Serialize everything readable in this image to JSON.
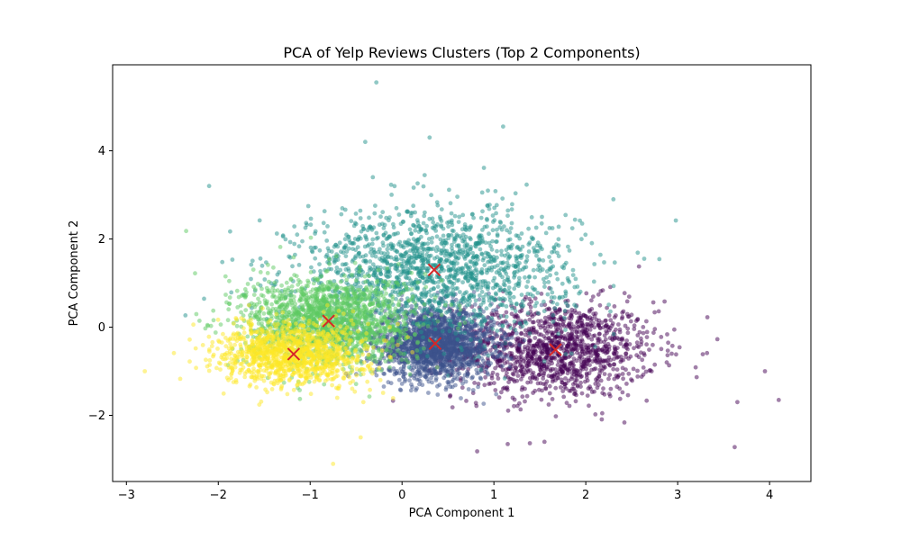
{
  "chart_data": {
    "type": "scatter",
    "title": "PCA of Yelp Reviews Clusters (Top 2 Components)",
    "xlabel": "PCA Component 1",
    "ylabel": "PCA Component 2",
    "xlim": [
      -3.15,
      4.45
    ],
    "ylim": [
      -3.5,
      5.95
    ],
    "x_ticks": [
      -3,
      -2,
      -1,
      0,
      1,
      2,
      3,
      4
    ],
    "y_ticks": [
      -2,
      0,
      2,
      4
    ],
    "x_tick_labels": [
      "−3",
      "−2",
      "−1",
      "0",
      "1",
      "2",
      "3",
      "4"
    ],
    "y_tick_labels": [
      "−2",
      "0",
      "2",
      "4"
    ],
    "grid": false,
    "legend": "none",
    "point_alpha": 0.5,
    "clusters": [
      {
        "color": "#440154",
        "center": [
          1.67,
          -0.51
        ],
        "spread": [
          0.55,
          0.55
        ],
        "count": 1300
      },
      {
        "color": "#3b528b",
        "center": [
          0.36,
          -0.37
        ],
        "spread": [
          0.32,
          0.4
        ],
        "count": 1800
      },
      {
        "color": "#21918c",
        "center": [
          0.35,
          1.3
        ],
        "spread": [
          0.75,
          0.7
        ],
        "count": 1600
      },
      {
        "color": "#5ec962",
        "center": [
          -0.8,
          0.14
        ],
        "spread": [
          0.45,
          0.5
        ],
        "count": 1700
      },
      {
        "color": "#fde725",
        "center": [
          -1.18,
          -0.61
        ],
        "spread": [
          0.4,
          0.35
        ],
        "count": 1200
      }
    ],
    "outliers": [
      {
        "x": -0.28,
        "y": 5.55,
        "color": "#21918c"
      },
      {
        "x": 1.1,
        "y": 4.55,
        "color": "#21918c"
      },
      {
        "x": -0.4,
        "y": 4.2,
        "color": "#21918c"
      },
      {
        "x": 0.3,
        "y": 4.3,
        "color": "#21918c"
      },
      {
        "x": -2.1,
        "y": 3.2,
        "color": "#21918c"
      },
      {
        "x": 2.3,
        "y": 2.9,
        "color": "#21918c"
      },
      {
        "x": 2.98,
        "y": 2.42,
        "color": "#21918c"
      },
      {
        "x": -2.35,
        "y": 2.18,
        "color": "#5ec962"
      },
      {
        "x": -2.8,
        "y": -1.0,
        "color": "#fde725"
      },
      {
        "x": -0.75,
        "y": -3.1,
        "color": "#fde725"
      },
      {
        "x": -0.45,
        "y": -2.5,
        "color": "#fde725"
      },
      {
        "x": 3.62,
        "y": -2.72,
        "color": "#440154"
      },
      {
        "x": 4.1,
        "y": -1.65,
        "color": "#440154"
      },
      {
        "x": 3.95,
        "y": -1.0,
        "color": "#440154"
      },
      {
        "x": 3.65,
        "y": -1.7,
        "color": "#440154"
      },
      {
        "x": 1.55,
        "y": -2.6,
        "color": "#440154"
      },
      {
        "x": 1.15,
        "y": -2.65,
        "color": "#440154"
      }
    ],
    "centroids": {
      "color": "#d62728",
      "marker": "x",
      "points": [
        [
          1.67,
          -0.51
        ],
        [
          0.36,
          -0.37
        ],
        [
          0.35,
          1.3
        ],
        [
          -0.8,
          0.14
        ],
        [
          -1.18,
          -0.61
        ]
      ]
    }
  }
}
